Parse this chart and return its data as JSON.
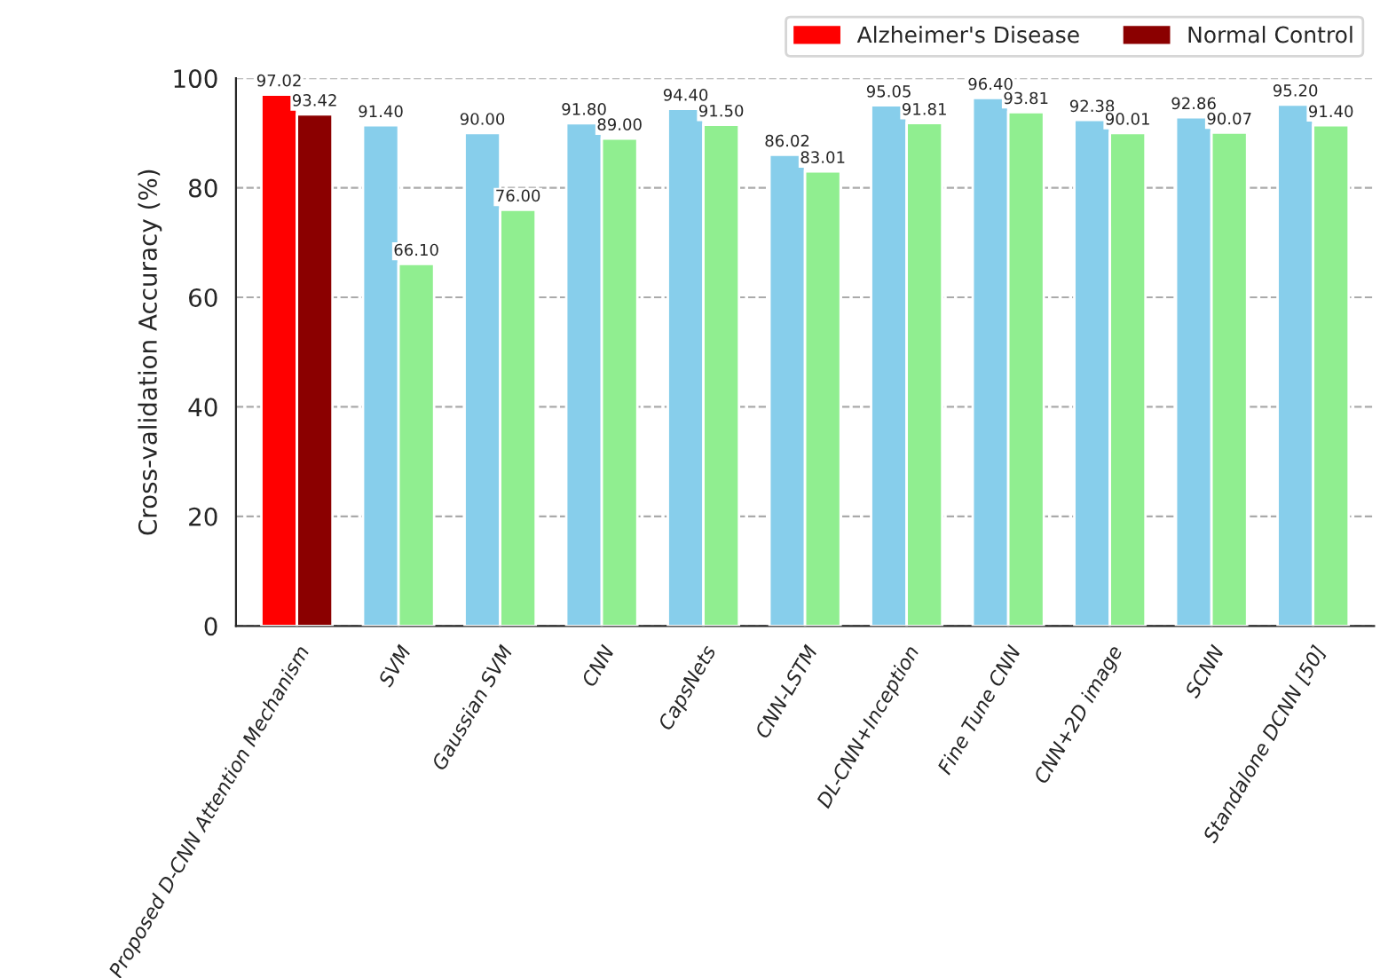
{
  "chart_data": {
    "type": "bar",
    "ylabel": "Cross-validation Accuracy (%)",
    "categories": [
      "Proposed D-CNN Attention Mechanism",
      "SVM",
      "Gaussian SVM",
      "CNN",
      "CapsNets",
      "CNN-LSTM",
      "DL-CNN+Inception",
      "Fine Tune CNN",
      "CNN+2D image",
      "SCNN",
      "Standalone DCNN [50]"
    ],
    "series": [
      {
        "name": "Alzheimer's Disease",
        "color": "#ff0000",
        "colors": [
          "#ff0000",
          "#87ceeb",
          "#87ceeb",
          "#87ceeb",
          "#87ceeb",
          "#87ceeb",
          "#87ceeb",
          "#87ceeb",
          "#87ceeb",
          "#87ceeb",
          "#87ceeb"
        ],
        "values": [
          97.02,
          91.4,
          90.0,
          91.8,
          94.4,
          86.02,
          95.05,
          96.4,
          92.38,
          92.86,
          95.2
        ],
        "value_labels": [
          "97.02",
          "91.40",
          "90.00",
          "91.80",
          "94.40",
          "86.02",
          "95.05",
          "96.40",
          "92.38",
          "92.86",
          "95.20"
        ]
      },
      {
        "name": "Normal Control",
        "color": "#8b0000",
        "colors": [
          "#8b0000",
          "#90ee90",
          "#90ee90",
          "#90ee90",
          "#90ee90",
          "#90ee90",
          "#90ee90",
          "#90ee90",
          "#90ee90",
          "#90ee90",
          "#90ee90"
        ],
        "values": [
          93.42,
          66.1,
          76.0,
          89.0,
          91.5,
          83.01,
          91.81,
          93.81,
          90.01,
          90.07,
          91.4
        ],
        "value_labels": [
          "93.42",
          "66.10",
          "76.00",
          "89.00",
          "91.50",
          "83.01",
          "91.81",
          "93.81",
          "90.01",
          "90.07",
          "91.40"
        ]
      }
    ],
    "ylim": [
      0,
      100
    ],
    "yticks": [
      0,
      20,
      40,
      60,
      80,
      100
    ],
    "grid": "y",
    "legend": "top right"
  }
}
